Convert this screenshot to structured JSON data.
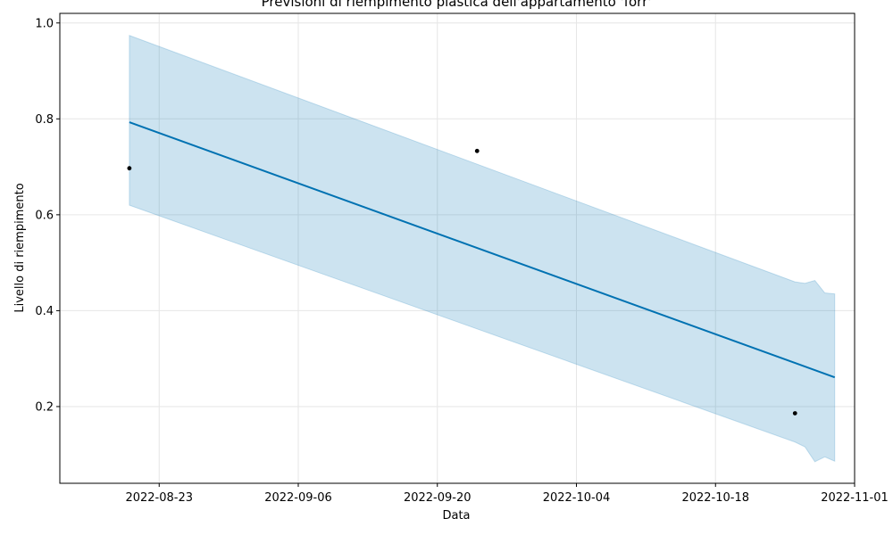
{
  "chart_data": {
    "type": "line",
    "title": "Previsioni di riempimento plastica dell'appartamento 'forr'",
    "xlabel": "Data",
    "ylabel": "Livello di riempimento",
    "x_axis_type": "date",
    "xlim": [
      "2022-08-13",
      "2022-11-01"
    ],
    "ylim": [
      0.04,
      1.02
    ],
    "x_ticks": [
      "2022-08-23",
      "2022-09-06",
      "2022-09-20",
      "2022-10-04",
      "2022-10-18",
      "2022-11-01"
    ],
    "y_ticks": [
      0.2,
      0.4,
      0.6,
      0.8,
      1.0
    ],
    "y_tick_labels": [
      "0.2",
      "0.4",
      "0.6",
      "0.8",
      "1.0"
    ],
    "grid": true,
    "colors": {
      "forecast_line": "#0072B2",
      "interval_fill": "#0072B2",
      "observed_points": "#000000",
      "grid": "#e6e6e6"
    },
    "series": [
      {
        "type": "scatter",
        "x": [
          "2022-08-20",
          "2022-09-24",
          "2022-10-26"
        ],
        "y": [
          0.697,
          0.733,
          0.186
        ]
      },
      {
        "type": "line",
        "x": [
          "2022-08-20",
          "2022-10-30"
        ],
        "y": [
          0.793,
          0.261
        ]
      },
      {
        "type": "area",
        "x": [
          "2022-08-20",
          "2022-10-26",
          "2022-10-27",
          "2022-10-28",
          "2022-10-29",
          "2022-10-30"
        ],
        "y_upper": [
          0.974,
          0.46,
          0.457,
          0.463,
          0.437,
          0.435
        ],
        "y_lower": [
          0.62,
          0.126,
          0.116,
          0.085,
          0.095,
          0.086
        ]
      }
    ]
  }
}
